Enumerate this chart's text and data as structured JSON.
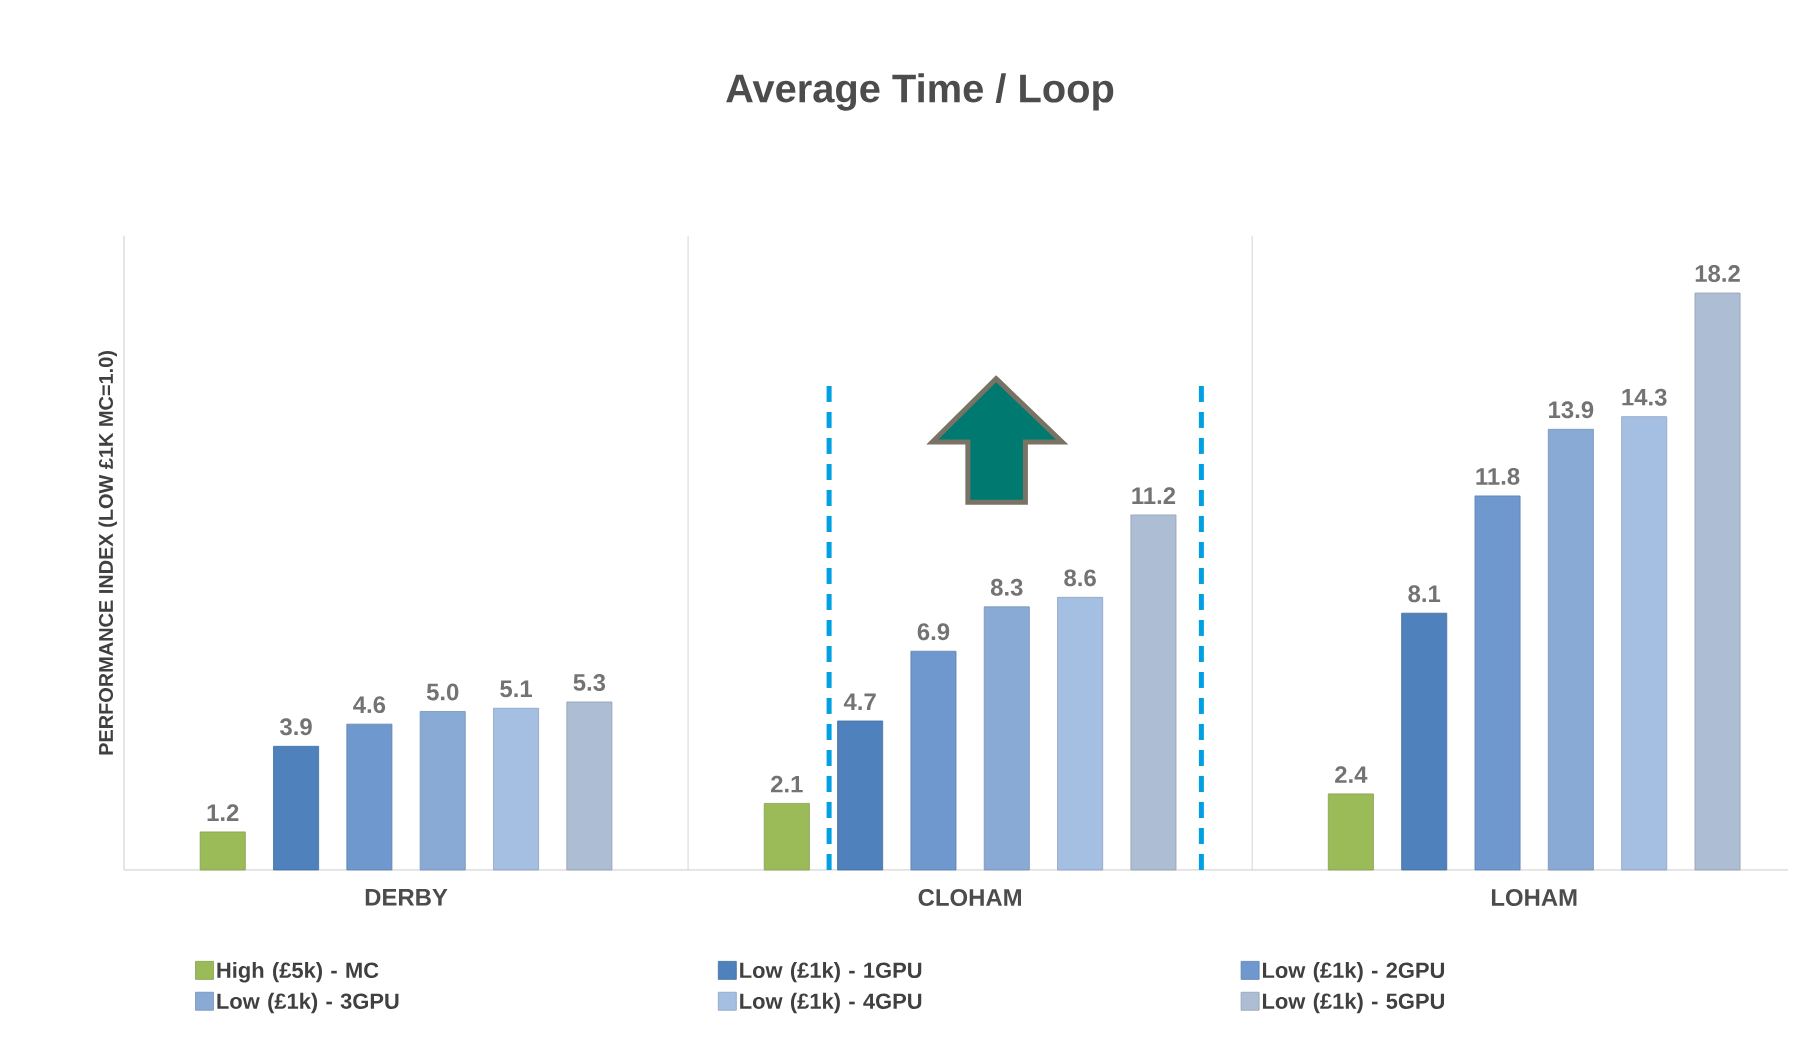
{
  "chart_data": {
    "type": "bar",
    "title": "Average Time / Loop",
    "ylabel": "PERFORMANCE INDEX (LOW £1K MC=1.0)",
    "categories": [
      "DERBY",
      "CLOHAM",
      "LOHAM"
    ],
    "series": [
      {
        "name": "High (£5k) - MC",
        "color": "#9bbb59",
        "values": [
          1.2,
          2.1,
          2.4
        ],
        "value_labels": [
          "1.2",
          "2.1",
          "2.4"
        ]
      },
      {
        "name": "Low (£1k) - 1GPU",
        "color": "#4f81bd",
        "values": [
          3.9,
          4.7,
          8.1
        ],
        "value_labels": [
          "3.9",
          "4.7",
          "8.1"
        ]
      },
      {
        "name": "Low (£1k) - 2GPU",
        "color": "#6f98cf",
        "values": [
          4.6,
          6.9,
          11.8
        ],
        "value_labels": [
          "4.6",
          "6.9",
          "11.8"
        ]
      },
      {
        "name": "Low (£1k) - 3GPU",
        "color": "#8aaad6",
        "values": [
          5.0,
          8.3,
          13.9
        ],
        "value_labels": [
          "5.0",
          "8.3",
          "13.9"
        ]
      },
      {
        "name": "Low (£1k) - 4GPU",
        "color": "#a5bfe2",
        "values": [
          5.1,
          8.6,
          14.3
        ],
        "value_labels": [
          "5.1",
          "8.6",
          "14.3"
        ]
      },
      {
        "name": "Low (£1k) - 5GPU",
        "color": "#adbdd3",
        "values": [
          5.3,
          11.2,
          18.2
        ],
        "value_labels": [
          "5.3",
          "11.2",
          "18.2"
        ]
      }
    ],
    "ylim": [
      0,
      20
    ],
    "tick_labels": "x",
    "legend": "bottom"
  }
}
